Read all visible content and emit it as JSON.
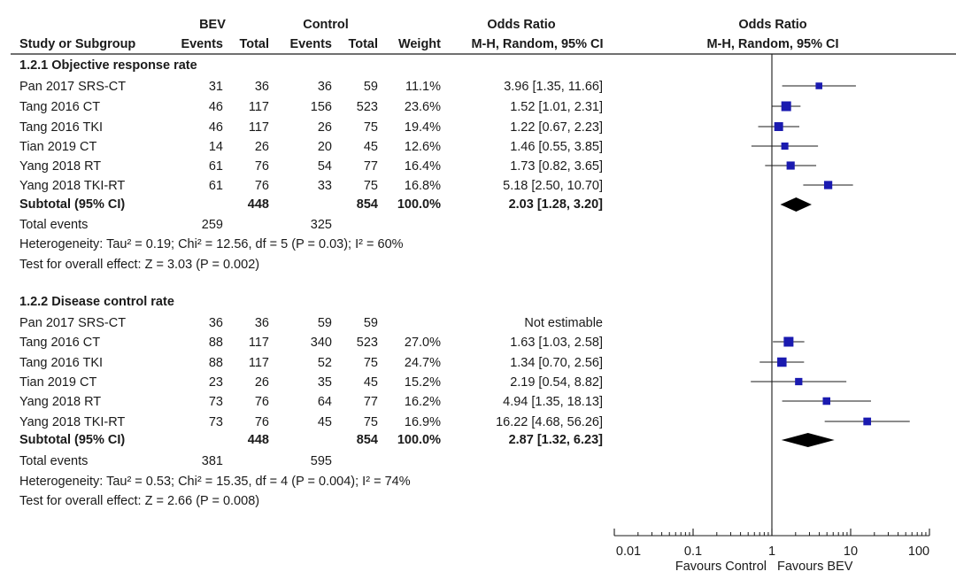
{
  "chart_data": {
    "type": "forest",
    "header": {
      "group1": "BEV",
      "group2": "Control",
      "effect_text_title": "Odds Ratio",
      "effect_text_subtitle": "M-H, Random, 95% CI",
      "plot_title": "Odds Ratio",
      "plot_subtitle": "M-H, Random, 95% CI",
      "columns": {
        "study": "Study or Subgroup",
        "events1": "Events",
        "total1": "Total",
        "events2": "Events",
        "total2": "Total",
        "weight": "Weight"
      }
    },
    "x_scale": "log",
    "xlim": [
      0.01,
      100
    ],
    "x_ticks": [
      {
        "value": 0.01,
        "label": "0.01"
      },
      {
        "value": 0.1,
        "label": "0.1"
      },
      {
        "value": 1,
        "label": "1"
      },
      {
        "value": 10,
        "label": "10"
      },
      {
        "value": 100,
        "label": "100"
      }
    ],
    "reference_line": 1,
    "favours_left": "Favours Control",
    "favours_right": "Favours BEV",
    "subgroups": [
      {
        "title": "1.2.1 Objective response rate",
        "studies": [
          {
            "name": "Pan 2017 SRS-CT",
            "events1": "31",
            "total1": "36",
            "events2": "36",
            "total2": "59",
            "weight_text": "11.1%",
            "weight": 11.1,
            "ci_text": "3.96 [1.35, 11.66]",
            "or": 3.96,
            "lo": 1.35,
            "hi": 11.66
          },
          {
            "name": "Tang 2016 CT",
            "events1": "46",
            "total1": "117",
            "events2": "156",
            "total2": "523",
            "weight_text": "23.6%",
            "weight": 23.6,
            "ci_text": "1.52 [1.01, 2.31]",
            "or": 1.52,
            "lo": 1.01,
            "hi": 2.31
          },
          {
            "name": "Tang 2016 TKI",
            "events1": "46",
            "total1": "117",
            "events2": "26",
            "total2": "75",
            "weight_text": "19.4%",
            "weight": 19.4,
            "ci_text": "1.22 [0.67, 2.23]",
            "or": 1.22,
            "lo": 0.67,
            "hi": 2.23
          },
          {
            "name": "Tian 2019 CT",
            "events1": "14",
            "total1": "26",
            "events2": "20",
            "total2": "45",
            "weight_text": "12.6%",
            "weight": 12.6,
            "ci_text": "1.46 [0.55, 3.85]",
            "or": 1.46,
            "lo": 0.55,
            "hi": 3.85
          },
          {
            "name": "Yang 2018 RT",
            "events1": "61",
            "total1": "76",
            "events2": "54",
            "total2": "77",
            "weight_text": "16.4%",
            "weight": 16.4,
            "ci_text": "1.73 [0.82, 3.65]",
            "or": 1.73,
            "lo": 0.82,
            "hi": 3.65
          },
          {
            "name": "Yang 2018 TKI-RT",
            "events1": "61",
            "total1": "76",
            "events2": "33",
            "total2": "75",
            "weight_text": "16.8%",
            "weight": 16.8,
            "ci_text": "5.18 [2.50, 10.70]",
            "or": 5.18,
            "lo": 2.5,
            "hi": 10.7
          }
        ],
        "subtotal": {
          "label": "Subtotal (95% CI)",
          "total1": "448",
          "total2": "854",
          "weight_text": "100.0%",
          "ci_text": "2.03 [1.28, 3.20]",
          "or": 2.03,
          "lo": 1.28,
          "hi": 3.2
        },
        "total_events": {
          "label": "Total events",
          "events1": "259",
          "events2": "325"
        },
        "heterogeneity": "Heterogeneity: Tau² = 0.19; Chi² = 12.56, df = 5 (P = 0.03); I² = 60%",
        "overall_effect": "Test for overall effect: Z = 3.03 (P = 0.002)"
      },
      {
        "title": "1.2.2 Disease control rate",
        "studies": [
          {
            "name": "Pan 2017 SRS-CT",
            "events1": "36",
            "total1": "36",
            "events2": "59",
            "total2": "59",
            "weight_text": "",
            "weight": null,
            "ci_text": "Not estimable",
            "or": null,
            "lo": null,
            "hi": null
          },
          {
            "name": "Tang 2016 CT",
            "events1": "88",
            "total1": "117",
            "events2": "340",
            "total2": "523",
            "weight_text": "27.0%",
            "weight": 27.0,
            "ci_text": "1.63 [1.03, 2.58]",
            "or": 1.63,
            "lo": 1.03,
            "hi": 2.58
          },
          {
            "name": "Tang 2016 TKI",
            "events1": "88",
            "total1": "117",
            "events2": "52",
            "total2": "75",
            "weight_text": "24.7%",
            "weight": 24.7,
            "ci_text": "1.34 [0.70, 2.56]",
            "or": 1.34,
            "lo": 0.7,
            "hi": 2.56
          },
          {
            "name": "Tian 2019 CT",
            "events1": "23",
            "total1": "26",
            "events2": "35",
            "total2": "45",
            "weight_text": "15.2%",
            "weight": 15.2,
            "ci_text": "2.19 [0.54, 8.82]",
            "or": 2.19,
            "lo": 0.54,
            "hi": 8.82
          },
          {
            "name": "Yang 2018 RT",
            "events1": "73",
            "total1": "76",
            "events2": "64",
            "total2": "77",
            "weight_text": "16.2%",
            "weight": 16.2,
            "ci_text": "4.94 [1.35, 18.13]",
            "or": 4.94,
            "lo": 1.35,
            "hi": 18.13
          },
          {
            "name": "Yang 2018 TKI-RT",
            "events1": "73",
            "total1": "76",
            "events2": "45",
            "total2": "75",
            "weight_text": "16.9%",
            "weight": 16.9,
            "ci_text": "16.22 [4.68, 56.26]",
            "or": 16.22,
            "lo": 4.68,
            "hi": 56.26
          }
        ],
        "subtotal": {
          "label": "Subtotal (95% CI)",
          "total1": "448",
          "total2": "854",
          "weight_text": "100.0%",
          "ci_text": "2.87 [1.32, 6.23]",
          "or": 2.87,
          "lo": 1.32,
          "hi": 6.23
        },
        "total_events": {
          "label": "Total events",
          "events1": "381",
          "events2": "595"
        },
        "heterogeneity": "Heterogeneity: Tau² = 0.53; Chi² = 15.35, df = 4 (P = 0.004); I² = 74%",
        "overall_effect": "Test for overall effect: Z = 2.66 (P = 0.008)"
      }
    ],
    "colors": {
      "square": "#1a1ab0",
      "diamond": "#000000",
      "line": "#1a1a1a"
    }
  }
}
